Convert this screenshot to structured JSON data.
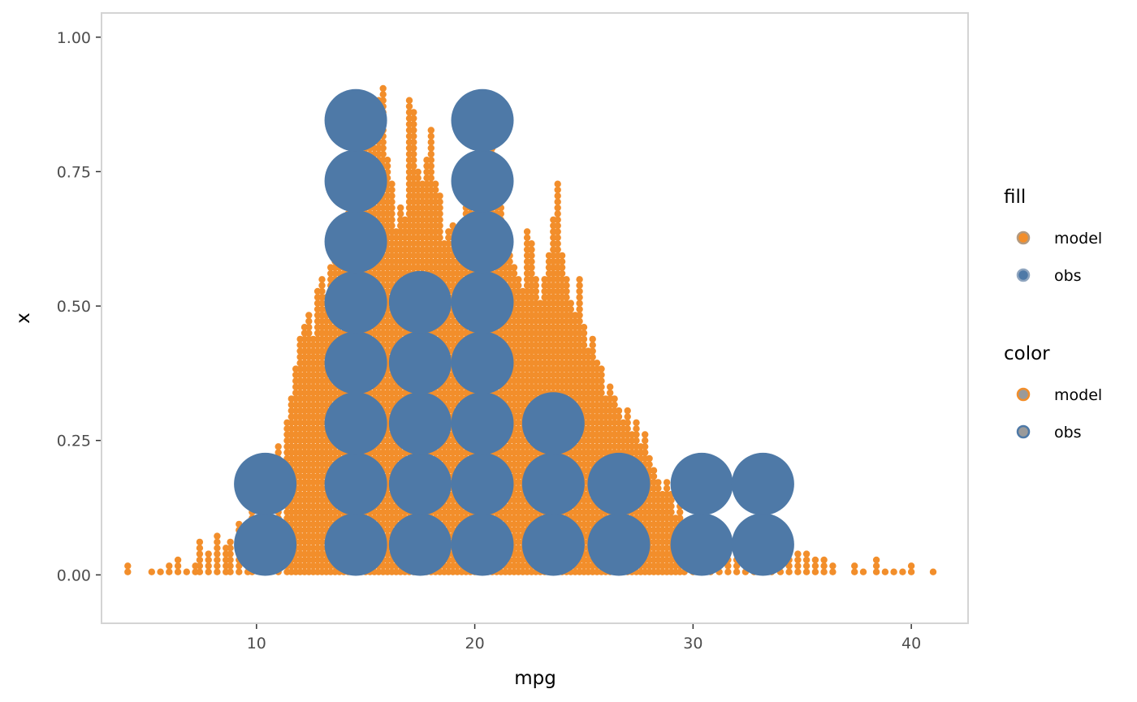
{
  "chart_data": {
    "type": "dotplot",
    "xlabel": "mpg",
    "ylabel": "x",
    "xlim": [
      2.9,
      42.6
    ],
    "ylim": [
      -0.09,
      1.045
    ],
    "x_ticks": [
      {
        "value": 10,
        "label": "10"
      },
      {
        "value": 20,
        "label": "20"
      },
      {
        "value": 30,
        "label": "30"
      },
      {
        "value": 40,
        "label": "40"
      }
    ],
    "y_ticks": [
      {
        "value": 0,
        "label": "0.00"
      },
      {
        "value": 0.25,
        "label": "0.25"
      },
      {
        "value": 0.5,
        "label": "0.50"
      },
      {
        "value": 0.75,
        "label": "0.75"
      },
      {
        "value": 1,
        "label": "1.00"
      }
    ],
    "grid": false,
    "legend_position": "right",
    "colors": {
      "model": "#F28E2B",
      "obs": "#4E79A7",
      "legend_outline_obs": "#8FA5BF",
      "legend_outline_model": "#B39A80"
    },
    "series": [
      {
        "name": "model",
        "dot_spacing_y": 0.0111,
        "bins": [
          [
            4.1,
            2
          ],
          [
            5.2,
            1
          ],
          [
            5.6,
            1
          ],
          [
            6.0,
            2
          ],
          [
            6.4,
            3
          ],
          [
            6.8,
            1
          ],
          [
            7.2,
            2
          ],
          [
            7.4,
            6
          ],
          [
            7.8,
            4
          ],
          [
            8.2,
            7
          ],
          [
            8.6,
            5
          ],
          [
            8.8,
            6
          ],
          [
            9.2,
            9
          ],
          [
            9.6,
            8
          ],
          [
            9.8,
            11
          ],
          [
            10.2,
            14
          ],
          [
            10.6,
            18
          ],
          [
            11.0,
            22
          ],
          [
            11.4,
            26
          ],
          [
            11.6,
            30
          ],
          [
            11.8,
            35
          ],
          [
            12.0,
            40
          ],
          [
            12.2,
            42
          ],
          [
            12.4,
            44
          ],
          [
            12.6,
            40
          ],
          [
            12.8,
            48
          ],
          [
            13.0,
            50
          ],
          [
            13.2,
            47
          ],
          [
            13.4,
            52
          ],
          [
            13.6,
            55
          ],
          [
            13.8,
            58
          ],
          [
            14.0,
            60
          ],
          [
            14.2,
            62
          ],
          [
            14.4,
            66
          ],
          [
            14.6,
            70
          ],
          [
            14.8,
            74
          ],
          [
            15.0,
            76
          ],
          [
            15.2,
            78
          ],
          [
            15.4,
            72
          ],
          [
            15.6,
            80
          ],
          [
            15.8,
            82
          ],
          [
            16.0,
            70
          ],
          [
            16.2,
            66
          ],
          [
            16.4,
            58
          ],
          [
            16.6,
            62
          ],
          [
            16.8,
            60
          ],
          [
            17.0,
            80
          ],
          [
            17.2,
            78
          ],
          [
            17.4,
            68
          ],
          [
            17.6,
            66
          ],
          [
            17.8,
            70
          ],
          [
            18.0,
            75
          ],
          [
            18.2,
            66
          ],
          [
            18.4,
            64
          ],
          [
            18.6,
            56
          ],
          [
            18.8,
            58
          ],
          [
            19.0,
            59
          ],
          [
            19.2,
            56
          ],
          [
            19.4,
            54
          ],
          [
            19.6,
            62
          ],
          [
            19.8,
            64
          ],
          [
            20.0,
            70
          ],
          [
            20.2,
            72
          ],
          [
            20.4,
            66
          ],
          [
            20.6,
            68
          ],
          [
            20.8,
            72
          ],
          [
            21.0,
            68
          ],
          [
            21.2,
            62
          ],
          [
            21.4,
            56
          ],
          [
            21.6,
            54
          ],
          [
            21.8,
            52
          ],
          [
            22.0,
            50
          ],
          [
            22.2,
            48
          ],
          [
            22.4,
            58
          ],
          [
            22.6,
            56
          ],
          [
            22.8,
            50
          ],
          [
            23.0,
            46
          ],
          [
            23.2,
            50
          ],
          [
            23.4,
            54
          ],
          [
            23.6,
            60
          ],
          [
            23.8,
            66
          ],
          [
            24.0,
            54
          ],
          [
            24.2,
            50
          ],
          [
            24.4,
            46
          ],
          [
            24.6,
            44
          ],
          [
            24.8,
            50
          ],
          [
            25.0,
            42
          ],
          [
            25.2,
            38
          ],
          [
            25.4,
            40
          ],
          [
            25.6,
            36
          ],
          [
            25.8,
            35
          ],
          [
            26.0,
            30
          ],
          [
            26.2,
            32
          ],
          [
            26.4,
            30
          ],
          [
            26.6,
            28
          ],
          [
            26.8,
            26
          ],
          [
            27.0,
            28
          ],
          [
            27.2,
            24
          ],
          [
            27.4,
            26
          ],
          [
            27.6,
            22
          ],
          [
            27.8,
            24
          ],
          [
            28.0,
            20
          ],
          [
            28.2,
            18
          ],
          [
            28.4,
            16
          ],
          [
            28.6,
            14
          ],
          [
            28.8,
            16
          ],
          [
            29.0,
            14
          ],
          [
            29.2,
            10
          ],
          [
            29.4,
            12
          ],
          [
            29.6,
            9
          ],
          [
            30.0,
            8
          ],
          [
            30.4,
            7
          ],
          [
            30.8,
            6
          ],
          [
            31.2,
            7
          ],
          [
            31.6,
            6
          ],
          [
            32.0,
            5
          ],
          [
            32.4,
            6
          ],
          [
            32.8,
            5
          ],
          [
            33.2,
            4
          ],
          [
            33.6,
            6
          ],
          [
            34.0,
            9
          ],
          [
            34.4,
            5
          ],
          [
            34.8,
            4
          ],
          [
            35.2,
            4
          ],
          [
            35.6,
            3
          ],
          [
            36.0,
            3
          ],
          [
            36.4,
            2
          ],
          [
            37.4,
            2
          ],
          [
            37.8,
            1
          ],
          [
            38.4,
            3
          ],
          [
            38.8,
            1
          ],
          [
            39.2,
            1
          ],
          [
            39.6,
            1
          ],
          [
            40.0,
            2
          ],
          [
            41.0,
            1
          ]
        ]
      },
      {
        "name": "obs",
        "dot_spacing_y": 0.1127,
        "bins": [
          [
            10.4,
            2
          ],
          [
            14.55,
            8
          ],
          [
            17.5,
            5
          ],
          [
            20.35,
            8
          ],
          [
            23.6,
            3
          ],
          [
            26.6,
            2
          ],
          [
            30.4,
            2
          ],
          [
            33.2,
            2
          ]
        ]
      }
    ]
  },
  "legend": {
    "groups": [
      {
        "title": "fill",
        "items": [
          {
            "label": "model"
          },
          {
            "label": "obs"
          }
        ]
      },
      {
        "title": "color",
        "items": [
          {
            "label": "model"
          },
          {
            "label": "obs"
          }
        ]
      }
    ]
  }
}
